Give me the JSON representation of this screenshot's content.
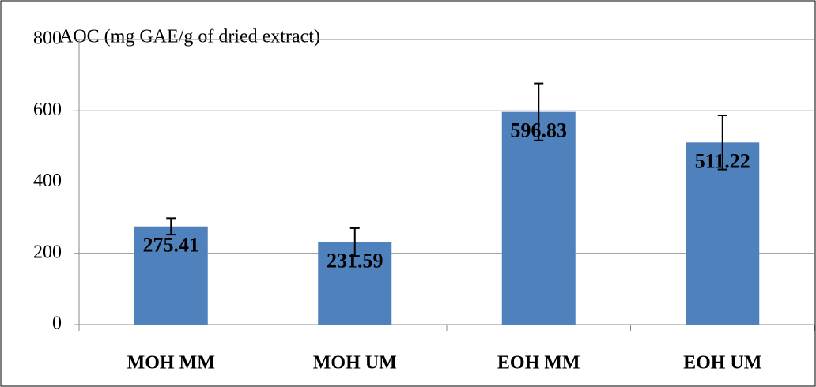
{
  "chart_data": {
    "type": "bar",
    "y_axis_label": "AOC (mg GAE/g of dried extract)",
    "categories": [
      "MOH MM",
      "MOH UM",
      "EOH MM",
      "EOH UM"
    ],
    "values": [
      275.41,
      231.59,
      596.83,
      511.22
    ],
    "errors": [
      23,
      39,
      80,
      76
    ],
    "color": "#4f81bd",
    "ylim": [
      0,
      800
    ],
    "yticks": [
      0,
      200,
      400,
      600,
      800
    ],
    "grid": true
  }
}
